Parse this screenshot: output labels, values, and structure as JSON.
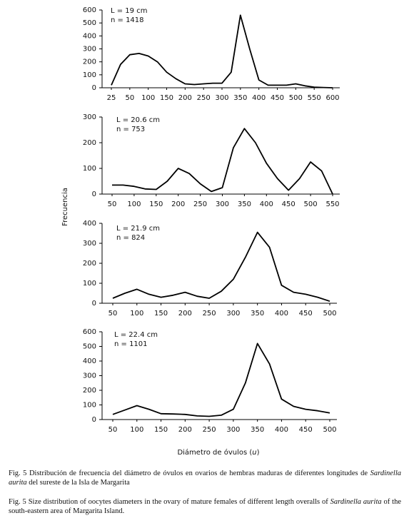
{
  "chart_data": [
    {
      "type": "line",
      "color": "#000000",
      "annotations": [
        "L = 19 cm",
        "n = 1418"
      ],
      "categories": [
        "25",
        null,
        "50",
        null,
        "100",
        null,
        "150",
        null,
        "200",
        null,
        "250",
        null,
        "300",
        null,
        "350",
        null,
        "400",
        null,
        "450",
        null,
        "500",
        null,
        "550",
        null,
        "600"
      ],
      "values": [
        20,
        180,
        255,
        265,
        245,
        200,
        120,
        70,
        30,
        25,
        30,
        35,
        35,
        120,
        560,
        300,
        60,
        20,
        20,
        20,
        30,
        15,
        5,
        2,
        0
      ],
      "ylim": [
        0,
        600
      ],
      "yticks": [
        0,
        100,
        200,
        300,
        400,
        500,
        600
      ]
    },
    {
      "type": "line",
      "color": "#000000",
      "annotations": [
        "L = 20.6 cm",
        "n = 753"
      ],
      "categories": [
        "50",
        null,
        "100",
        null,
        "150",
        null,
        "200",
        null,
        "250",
        null,
        "300",
        null,
        "350",
        null,
        "400",
        null,
        "450",
        null,
        "500",
        null,
        "550"
      ],
      "values": [
        35,
        35,
        30,
        20,
        18,
        50,
        100,
        80,
        40,
        10,
        25,
        180,
        255,
        200,
        120,
        60,
        15,
        60,
        125,
        90,
        0
      ],
      "ylim": [
        0,
        300
      ],
      "yticks": [
        0,
        100,
        200,
        300
      ]
    },
    {
      "type": "line",
      "color": "#000000",
      "annotations": [
        "L = 21.9 cm",
        "n = 824"
      ],
      "categories": [
        "50",
        null,
        "100",
        null,
        "150",
        null,
        "200",
        null,
        "250",
        null,
        "300",
        null,
        "350",
        null,
        "400",
        null,
        "450",
        null,
        "500"
      ],
      "values": [
        25,
        50,
        70,
        45,
        30,
        40,
        55,
        35,
        25,
        60,
        120,
        230,
        355,
        280,
        90,
        55,
        45,
        30,
        10
      ],
      "ylim": [
        0,
        400
      ],
      "yticks": [
        0,
        100,
        200,
        300,
        400
      ]
    },
    {
      "type": "line",
      "color": "#000000",
      "annotations": [
        "L = 22.4 cm",
        "n = 1101"
      ],
      "categories": [
        "50",
        null,
        "100",
        null,
        "150",
        null,
        "200",
        null,
        "250",
        null,
        "300",
        null,
        "350",
        null,
        "400",
        null,
        "450",
        null,
        "500"
      ],
      "values": [
        35,
        65,
        95,
        70,
        40,
        38,
        35,
        25,
        22,
        30,
        70,
        250,
        520,
        380,
        140,
        90,
        70,
        60,
        45
      ],
      "ylim": [
        0,
        600
      ],
      "yticks": [
        0,
        100,
        200,
        300,
        400,
        500,
        600
      ]
    }
  ],
  "y_label": "Frecuencia",
  "x_label": [
    "Diámetro de óvulos (",
    "u",
    ")"
  ],
  "caption_es": [
    "Fig. 5 Distribución de frecuencia del diámetro de óvulos en ovarios de hembras maduras de diferentes longitudes de ",
    "Sardinella aurita",
    " del sureste de la Isla de Margarita"
  ],
  "caption_en": [
    "Fig. 5 Size distribution of oocytes diameters in the ovary of mature females of different length overalls of ",
    "Sardinella aurita",
    " of the south-eastern area of  Margarita Island."
  ]
}
